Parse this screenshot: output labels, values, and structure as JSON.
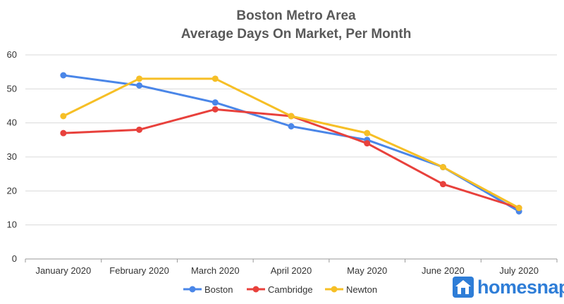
{
  "chart_data": {
    "type": "line",
    "title": "Boston Metro Area",
    "subtitle": "Average Days On Market, Per Month",
    "xlabel": "",
    "ylabel": "",
    "categories": [
      "January 2020",
      "February 2020",
      "March 2020",
      "April 2020",
      "May 2020",
      "June 2020",
      "July 2020"
    ],
    "ylim": [
      0,
      60
    ],
    "yticks": [
      0,
      10,
      20,
      30,
      40,
      50,
      60
    ],
    "grid": true,
    "legend_position": "bottom",
    "series": [
      {
        "name": "Boston",
        "color": "#4A86E8",
        "values": [
          54,
          51,
          46,
          39,
          35,
          27,
          14
        ]
      },
      {
        "name": "Cambridge",
        "color": "#E8413C",
        "values": [
          37,
          38,
          44,
          42,
          34,
          22,
          15
        ]
      },
      {
        "name": "Newton",
        "color": "#F6BF26",
        "values": [
          42,
          53,
          53,
          42,
          37,
          27,
          15
        ]
      }
    ]
  },
  "branding": {
    "logo_text": "homesnap",
    "logo_color": "#2E7DD7",
    "logo_icon": "house-icon"
  }
}
